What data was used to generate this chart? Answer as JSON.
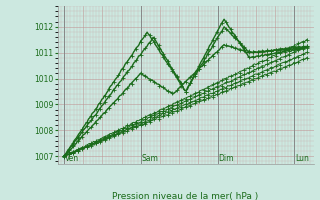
{
  "title": "",
  "xlabel": "Pression niveau de la mer( hPa )",
  "bg_color": "#cce8e0",
  "grid_color_minor": "#d4a0a0",
  "grid_color_major": "#c49090",
  "line_color": "#1a6b1a",
  "ylim": [
    1006.7,
    1012.8
  ],
  "yticks": [
    1007,
    1008,
    1009,
    1010,
    1011,
    1012
  ],
  "day_positions": [
    0,
    24,
    48,
    72
  ],
  "day_labels": [
    "Ven",
    "Sam",
    "Dim",
    "Lun"
  ],
  "xlim": [
    -2,
    78
  ]
}
